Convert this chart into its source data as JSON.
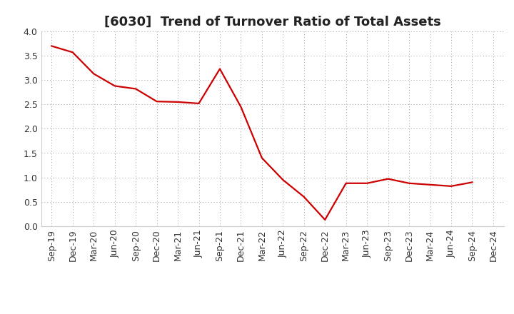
{
  "title": "[6030]  Trend of Turnover Ratio of Total Assets",
  "line_color": "#CC0000",
  "background_color": "#FFFFFF",
  "plot_bg_color": "#FFFFFF",
  "grid_color": "#999999",
  "ylim": [
    0.0,
    4.0
  ],
  "yticks": [
    0.0,
    0.5,
    1.0,
    1.5,
    2.0,
    2.5,
    3.0,
    3.5,
    4.0
  ],
  "labels": [
    "Sep-19",
    "Dec-19",
    "Mar-20",
    "Jun-20",
    "Sep-20",
    "Dec-20",
    "Mar-21",
    "Jun-21",
    "Sep-21",
    "Dec-21",
    "Mar-22",
    "Jun-22",
    "Sep-22",
    "Dec-22",
    "Mar-23",
    "Jun-23",
    "Sep-23",
    "Dec-23",
    "Mar-24",
    "Jun-24",
    "Sep-24",
    "Dec-24"
  ],
  "values": [
    3.7,
    3.57,
    3.13,
    2.88,
    2.82,
    2.56,
    2.55,
    2.52,
    3.23,
    2.45,
    1.4,
    0.95,
    0.6,
    0.13,
    0.88,
    0.88,
    0.97,
    0.88,
    0.85,
    0.82,
    0.9,
    null
  ],
  "title_fontsize": 13,
  "tick_fontsize": 9,
  "linewidth": 1.6
}
